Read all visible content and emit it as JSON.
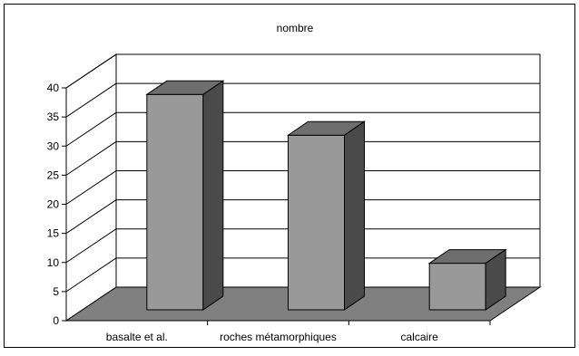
{
  "chart_data": {
    "type": "bar",
    "title": "nombre",
    "categories": [
      "basalte et al.",
      "roches métamorphiques",
      "calcaire"
    ],
    "values": [
      37,
      30,
      8
    ],
    "xlabel": "",
    "ylabel": "",
    "ylim": [
      0,
      40
    ],
    "yticks": [
      "0",
      "5",
      "10",
      "15",
      "20",
      "25",
      "30",
      "35",
      "40"
    ],
    "grid": true,
    "legend": "none",
    "style": "3d-column",
    "colors": {
      "bar_front": "#999999",
      "bar_top": "#6e6e6e",
      "bar_side": "#4a4a4a",
      "floor": "#808080",
      "grid": "#000000"
    }
  }
}
